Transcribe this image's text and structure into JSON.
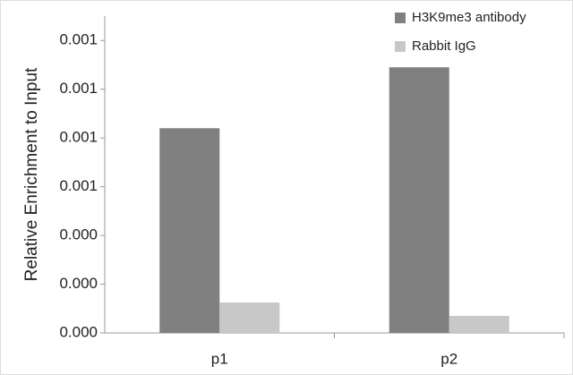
{
  "chart_data": {
    "type": "bar",
    "y_label": "Relative Enrichment to Input",
    "categories": [
      "p1",
      "p2"
    ],
    "series": [
      {
        "name": "H3K9me3 antibody",
        "color": "#808080",
        "values": [
          0.00084,
          0.00109
        ]
      },
      {
        "name": "Rabbit IgG",
        "color": "#c8c8c8",
        "values": [
          0.000125,
          7e-05
        ]
      }
    ],
    "ylim": [
      0,
      0.0013
    ],
    "yticks": [
      {
        "value": 0,
        "label": "0.000"
      },
      {
        "value": 0.0002,
        "label": "0.000"
      },
      {
        "value": 0.0004,
        "label": "0.000"
      },
      {
        "value": 0.0006,
        "label": "0.001"
      },
      {
        "value": 0.0008,
        "label": "0.001"
      },
      {
        "value": 0.001,
        "label": "0.001"
      },
      {
        "value": 0.0012,
        "label": "0.001"
      }
    ],
    "legend": "top-right"
  }
}
